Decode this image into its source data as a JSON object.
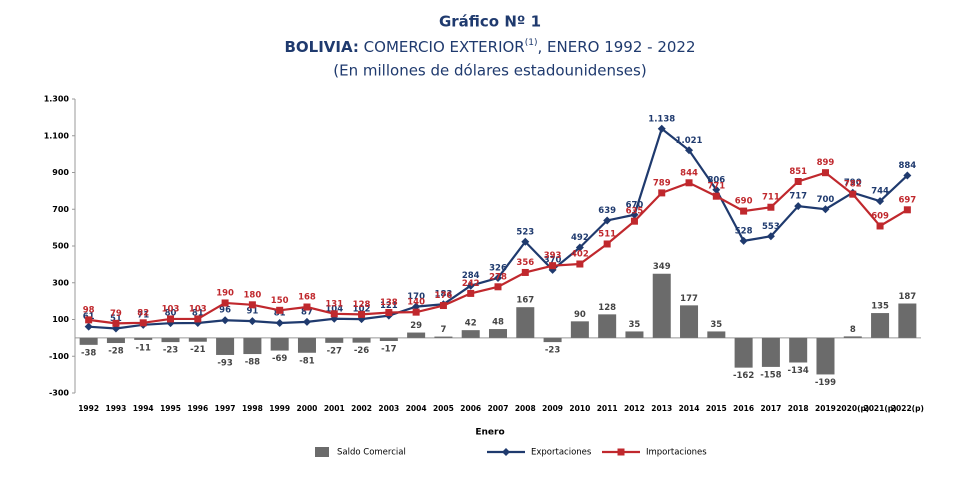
{
  "chart_data": {
    "type": "bar_line",
    "title": "Gráfico Nº 1",
    "subtitle_parts": [
      "BOLIVIA:",
      "COMERCIO EXTERIOR",
      "(1)",
      ", ENERO 1992 - 2022"
    ],
    "subtitle2": "(En millones de dólares estadounidenses)",
    "x_label": "Enero",
    "categories": [
      "1992",
      "1993",
      "1994",
      "1995",
      "1996",
      "1997",
      "1998",
      "1999",
      "2000",
      "2001",
      "2002",
      "2003",
      "2004",
      "2005",
      "2006",
      "2007",
      "2008",
      "2009",
      "2010",
      "2011",
      "2012",
      "2013",
      "2014",
      "2015",
      "2016",
      "2017",
      "2018",
      "2019",
      "2020(p)",
      "2021(p)",
      "2022(p)"
    ],
    "ylim": [
      -300,
      1300
    ],
    "yticks": [
      -300,
      -100,
      100,
      300,
      500,
      700,
      {
        "value": 900,
        "label": "900"
      },
      {
        "value": 1100,
        "label": "1.100"
      },
      {
        "value": 1300,
        "label": "1.300"
      }
    ],
    "series": [
      {
        "name": "Saldo Comercial",
        "kind": "bar",
        "color": "#6b6b6b",
        "values": [
          -38,
          -28,
          -11,
          -23,
          -21,
          -93,
          -88,
          -69,
          -81,
          -27,
          -26,
          -17,
          29,
          7,
          42,
          48,
          167,
          -23,
          90,
          128,
          35,
          349,
          177,
          35,
          -162,
          -158,
          -134,
          -199,
          8,
          135,
          187
        ]
      },
      {
        "name": "Exportaciones",
        "kind": "line",
        "marker": "diamond",
        "color": "#1f3a6e",
        "values": [
          61,
          51,
          71,
          80,
          81,
          96,
          91,
          81,
          87,
          104,
          102,
          121,
          170,
          183,
          284,
          326,
          523,
          370,
          492,
          639,
          670,
          1138,
          1021,
          806,
          528,
          553,
          717,
          700,
          790,
          744,
          884
        ],
        "value_labels": [
          "61",
          "51",
          "71",
          "80",
          "81",
          "96",
          "91",
          "81",
          "87",
          "104",
          "102",
          "121",
          "170",
          "183",
          "284",
          "326",
          "523",
          "370",
          "492",
          "639",
          "670",
          "1.138",
          "1.021",
          "806",
          "528",
          "553",
          "717",
          "700",
          "790",
          "744",
          "884"
        ]
      },
      {
        "name": "Importaciones",
        "kind": "line",
        "marker": "square",
        "color": "#c0282d",
        "values": [
          98,
          79,
          82,
          103,
          103,
          190,
          180,
          150,
          168,
          131,
          128,
          138,
          140,
          176,
          242,
          278,
          356,
          393,
          402,
          511,
          635,
          789,
          844,
          771,
          690,
          711,
          851,
          899,
          782,
          609,
          697
        ]
      }
    ]
  }
}
